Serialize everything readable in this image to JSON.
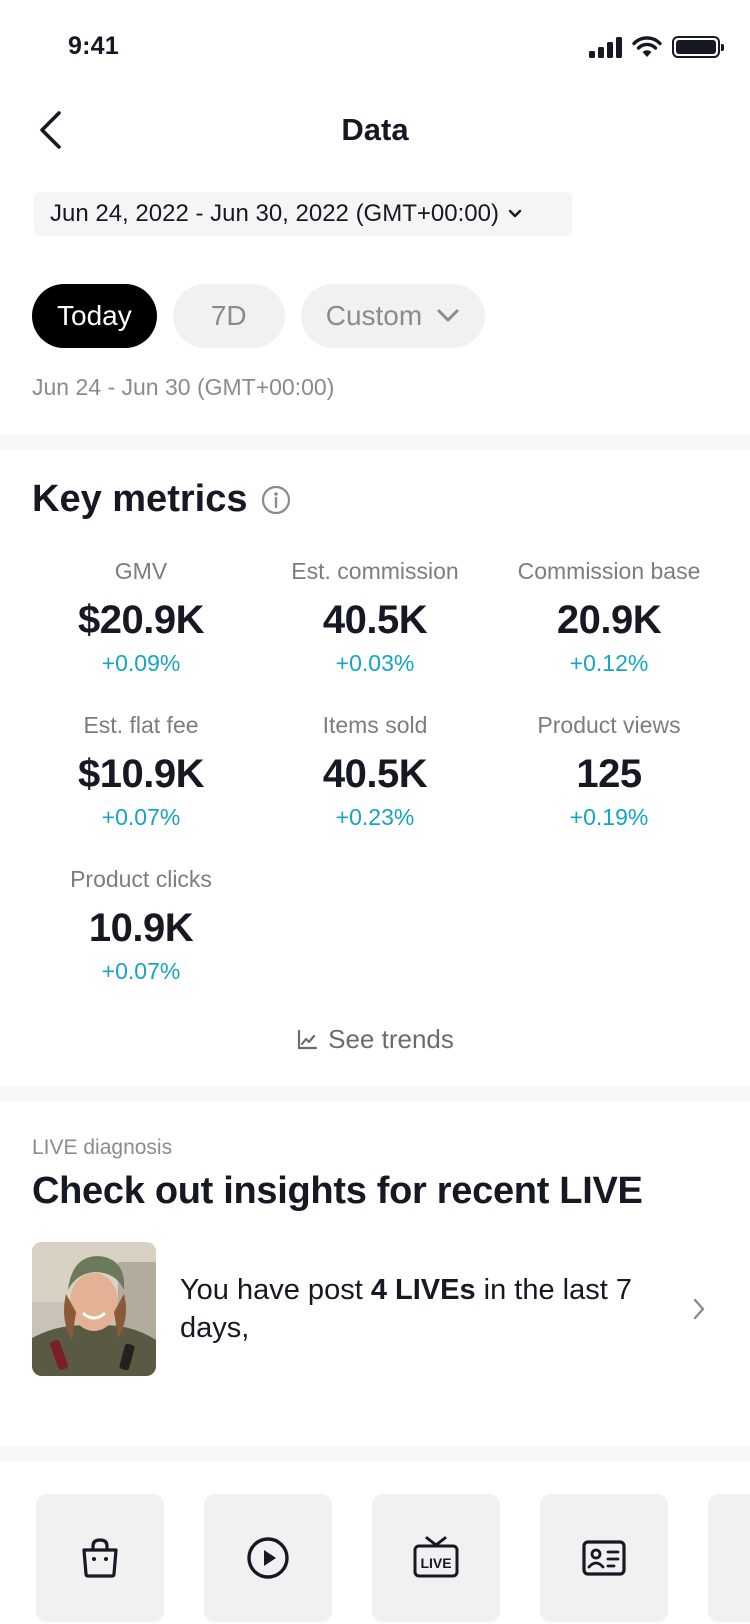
{
  "status_bar": {
    "time": "9:41"
  },
  "header": {
    "title": "Data"
  },
  "date_range": {
    "label": "Jun 24, 2022 - Jun 30, 2022 (GMT+00:00)"
  },
  "filters": {
    "chips": [
      {
        "label": "Today",
        "active": true
      },
      {
        "label": "7D",
        "active": false
      },
      {
        "label": "Custom",
        "active": false
      }
    ],
    "range_text": "Jun 24 - Jun 30 (GMT+00:00)"
  },
  "key_metrics": {
    "title": "Key metrics",
    "items": [
      {
        "label": "GMV",
        "value": "$20.9K",
        "delta": "+0.09%"
      },
      {
        "label": "Est. commission",
        "value": "40.5K",
        "delta": "+0.03%"
      },
      {
        "label": "Commission base",
        "value": "20.9K",
        "delta": "+0.12%"
      },
      {
        "label": "Est. flat fee",
        "value": "$10.9K",
        "delta": "+0.07%"
      },
      {
        "label": "Items sold",
        "value": "40.5K",
        "delta": "+0.23%"
      },
      {
        "label": "Product views",
        "value": "125",
        "delta": "+0.19%"
      },
      {
        "label": "Product clicks",
        "value": "10.9K",
        "delta": "+0.07%"
      }
    ],
    "see_trends": "See trends"
  },
  "live_diagnosis": {
    "label": "LIVE diagnosis",
    "title": "Check out insights for recent LIVE",
    "card_prefix": "You have post ",
    "card_highlight": "4 LIVEs",
    "card_suffix": " in the last 7 days,"
  },
  "shortcuts": {
    "items": [
      {
        "icon": "shopping-bag-icon"
      },
      {
        "icon": "play-circle-icon"
      },
      {
        "icon": "live-tv-icon",
        "text": "LIVE"
      },
      {
        "icon": "id-card-icon"
      }
    ]
  },
  "colors": {
    "accent_positive": "#15a4c4",
    "chip_active_bg": "#000000",
    "chip_bg": "#f1f1f2",
    "text_primary": "#161823",
    "text_secondary": "#8a8b91"
  }
}
